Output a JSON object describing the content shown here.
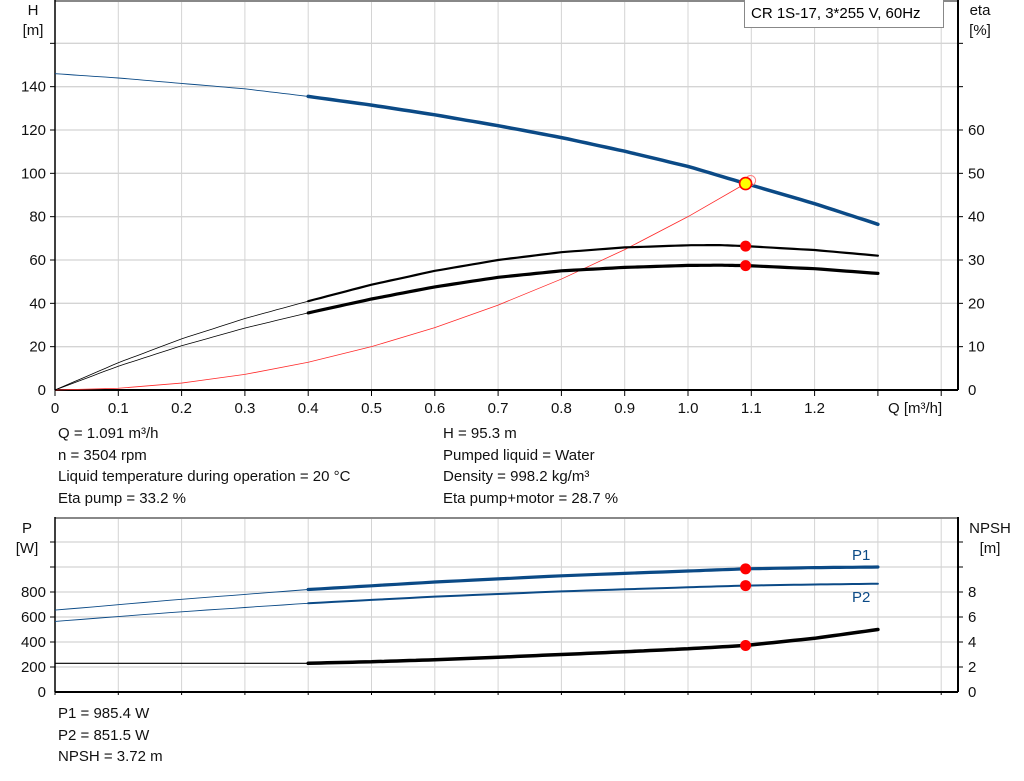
{
  "legend_box": "CR 1S-17, 3*255 V, 60Hz",
  "colors": {
    "head": "#0b4a86",
    "eta": "#000000",
    "system": "#ff2a2a",
    "power": "#0b4a86",
    "npsh": "#000000",
    "duty_point": "#ff0000",
    "duty_marker_fill": "#ffff00",
    "grid": "#d4d4d4"
  },
  "chart_data": [
    {
      "type": "line",
      "xlabel": "Q [m³/h]",
      "ylabel": "H\n[m]",
      "ylabel_lines": [
        "H",
        "[m]"
      ],
      "y2label_lines": [
        "eta",
        "[%]"
      ],
      "xlim": [
        0,
        1.42
      ],
      "ylim": [
        0,
        180
      ],
      "y2lim": [
        0,
        90
      ],
      "x_ticks": [
        "0",
        "0.1",
        "0.2",
        "0.3",
        "0.4",
        "0.5",
        "0.6",
        "0.7",
        "0.8",
        "0.9",
        "1.0",
        "1.1",
        "1.2"
      ],
      "y_ticks": [
        "0",
        "20",
        "40",
        "60",
        "80",
        "100",
        "120",
        "140"
      ],
      "y2_ticks": [
        "0",
        "10",
        "20",
        "30",
        "40",
        "50",
        "60"
      ],
      "grid": true,
      "series": [
        {
          "key": "head",
          "axis": "left",
          "x": [
            0,
            0.1,
            0.2,
            0.3,
            0.4,
            0.5,
            0.6,
            0.7,
            0.8,
            0.9,
            1.0,
            1.091,
            1.2,
            1.3
          ],
          "y": [
            146,
            144,
            141.5,
            139,
            135.5,
            131.5,
            127,
            122,
            116.5,
            110.2,
            103.2,
            95.3,
            86,
            76.5
          ]
        },
        {
          "key": "eta_pump",
          "axis": "right",
          "x": [
            0,
            0.1,
            0.2,
            0.3,
            0.4,
            0.5,
            0.6,
            0.7,
            0.8,
            0.9,
            1.0,
            1.05,
            1.091,
            1.2,
            1.3
          ],
          "y": [
            0,
            6.3,
            11.8,
            16.5,
            20.5,
            24.3,
            27.5,
            30,
            31.8,
            32.9,
            33.4,
            33.45,
            33.2,
            32.3,
            31
          ]
        },
        {
          "key": "eta_pump_motor",
          "axis": "right",
          "x": [
            0,
            0.1,
            0.2,
            0.3,
            0.4,
            0.5,
            0.6,
            0.7,
            0.8,
            0.9,
            1.0,
            1.05,
            1.091,
            1.2,
            1.3
          ],
          "y": [
            0,
            5.5,
            10.2,
            14.3,
            17.8,
            21,
            23.8,
            26,
            27.5,
            28.3,
            28.75,
            28.8,
            28.7,
            28,
            26.9
          ]
        },
        {
          "key": "system",
          "axis": "left",
          "x": [
            0,
            0.1,
            0.2,
            0.3,
            0.4,
            0.5,
            0.6,
            0.7,
            0.8,
            0.9,
            1.0,
            1.091
          ],
          "y": [
            0,
            0.8,
            3.2,
            7.2,
            12.8,
            20,
            28.8,
            39.2,
            51.2,
            64.8,
            80,
            95.3
          ]
        }
      ],
      "duty_point": {
        "q": 1.091,
        "h": 95.3,
        "eta_pump": 33.2,
        "eta_pump_motor": 28.7
      },
      "thin_until_q": 0.4
    },
    {
      "type": "line",
      "ylabel_lines": [
        "P",
        "[W]"
      ],
      "y2label_lines": [
        "NPSH",
        "[m]"
      ],
      "xlim": [
        0,
        1.42
      ],
      "ylim": [
        0,
        1400
      ],
      "y2lim": [
        0,
        14
      ],
      "y_ticks": [
        "0",
        "200",
        "400",
        "600",
        "800"
      ],
      "y2_ticks": [
        "0",
        "2",
        "4",
        "6",
        "8"
      ],
      "grid": true,
      "series": [
        {
          "key": "p1",
          "name": "P1",
          "axis": "left",
          "x": [
            0,
            0.2,
            0.4,
            0.6,
            0.8,
            1.0,
            1.091,
            1.2,
            1.3
          ],
          "y": [
            655,
            742,
            820,
            880,
            930,
            968,
            985.4,
            995,
            1000
          ]
        },
        {
          "key": "p2",
          "name": "P2",
          "axis": "left",
          "x": [
            0,
            0.2,
            0.4,
            0.6,
            0.8,
            1.0,
            1.091,
            1.2,
            1.3
          ],
          "y": [
            565,
            642,
            710,
            763,
            805,
            838,
            851.5,
            860,
            866
          ]
        },
        {
          "key": "npsh",
          "axis": "right",
          "x": [
            0,
            0.4,
            0.5,
            0.6,
            0.7,
            0.8,
            0.9,
            1.0,
            1.091,
            1.2,
            1.3
          ],
          "y": [
            2.3,
            2.3,
            2.42,
            2.58,
            2.78,
            3.0,
            3.22,
            3.46,
            3.72,
            4.3,
            5.0
          ]
        }
      ],
      "duty_point": {
        "q": 1.091,
        "p1": 985.4,
        "p2": 851.5,
        "npsh": 3.72
      },
      "thin_until_q": 0.4
    }
  ],
  "info_top_left": [
    "Q = 1.091 m³/h",
    "n = 3504 rpm",
    "Liquid temperature during operation = 20 °C",
    "Eta pump = 33.2 %"
  ],
  "info_top_right": [
    "H = 95.3 m",
    "Pumped liquid = Water",
    "Density = 998.2 kg/m³",
    "Eta pump+motor = 28.7 %"
  ],
  "info_bottom": [
    "P1 = 985.4 W",
    "P2 = 851.5 W",
    "NPSH = 3.72 m"
  ]
}
